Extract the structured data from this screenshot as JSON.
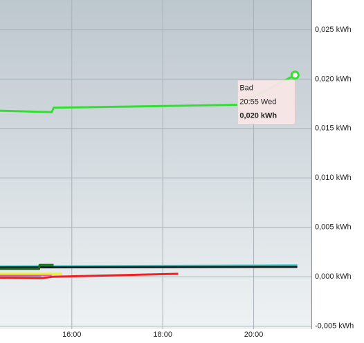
{
  "chart_data": {
    "type": "line",
    "xlim": [
      14.42,
      21.27
    ],
    "ylim": [
      -0.0053,
      0.028
    ],
    "xticks": [
      {
        "value": 16,
        "label": "16:00"
      },
      {
        "value": 18,
        "label": "18:00"
      },
      {
        "value": 20,
        "label": "20:00"
      }
    ],
    "yticks": [
      {
        "value": -0.005,
        "label": "-0,005 kWh"
      },
      {
        "value": 0,
        "label": "0,000 kWh"
      },
      {
        "value": 0.005,
        "label": "0,005 kWh"
      },
      {
        "value": 0.01,
        "label": "0,010 kWh"
      },
      {
        "value": 0.015,
        "label": "0,015 kWh"
      },
      {
        "value": 0.02,
        "label": "0,020 kWh"
      },
      {
        "value": 0.025,
        "label": "0,025 kWh"
      }
    ],
    "grid": true,
    "series": [
      {
        "color": "#ee2222",
        "x": [
          14.42,
          15.33,
          15.56,
          18.34
        ],
        "values": [
          -0.0001,
          -0.00015,
          0.0,
          0.0003
        ]
      },
      {
        "color": "#55aa88",
        "x": [
          14.42,
          15.33
        ],
        "values": [
          0.0001,
          0.0001
        ]
      },
      {
        "color": "#ee44cc",
        "x": [
          14.42,
          15.56
        ],
        "values": [
          0.0002,
          0.0002
        ]
      },
      {
        "color": "#f0f020",
        "x": [
          14.42,
          15.79
        ],
        "values": [
          0.0003,
          0.0003
        ]
      },
      {
        "color": "#33cccc",
        "x": [
          14.42,
          20.96
        ],
        "values": [
          0.00105,
          0.00115
        ]
      },
      {
        "color": "#1a1a1a",
        "x": [
          14.42,
          20.96
        ],
        "values": [
          0.00095,
          0.001
        ]
      },
      {
        "color": "#1a6a1a",
        "x": [
          14.42,
          15.28,
          15.29,
          15.6
        ],
        "values": [
          0.0008,
          0.0008,
          0.0012,
          0.0012
        ]
      },
      {
        "name": "Bad",
        "color": "#33dd33",
        "x": [
          14.42,
          15.56,
          15.6,
          19.67,
          20.91
        ],
        "values": [
          0.0168,
          0.01666,
          0.0171,
          0.0174,
          0.0204
        ]
      }
    ],
    "tooltip": {
      "series": "Bad",
      "time": "20:55 Wed",
      "value": "0,020 kWh"
    }
  }
}
